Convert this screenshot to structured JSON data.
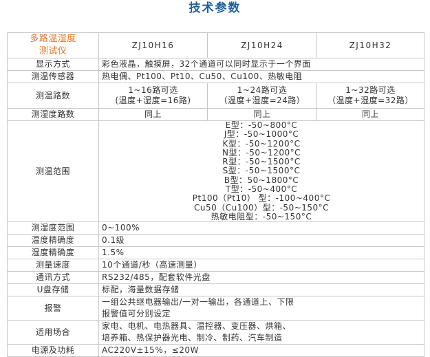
{
  "title": "技术参数",
  "header": {
    "name_line1": "多路温湿度",
    "name_line2": "测试仪",
    "models": [
      "ZJ10H16",
      "ZJ10H24",
      "ZJ10H32"
    ]
  },
  "rows": {
    "display": {
      "label": "显示方式",
      "value": "彩色液晶，触摸屏，32个通道可以同时显示于一个界面"
    },
    "sensor": {
      "label": "测温传感器",
      "value": "热电偶、Pt100、Pt10、Cu50、Cu100、热敏电阻"
    },
    "temp_channels": {
      "label": "测温路数",
      "values": [
        [
          "1~16路可选",
          "(温度+湿度=16路)"
        ],
        [
          "1~24路可选",
          "（温度+湿度=24路）"
        ],
        [
          "1~32路可选",
          "（温度+湿度=32路）"
        ]
      ]
    },
    "hum_channels": {
      "label": "测湿度路数",
      "values": [
        "同上",
        "同上",
        "同上"
      ]
    },
    "temp_range": {
      "label": "测温范围",
      "values": [
        "E型：-50~800°C",
        "J型：-50~1000°C",
        "K型：-50~1200°C",
        "N型：-50~1200°C",
        "R型：-50~1500°C",
        "S型：-50~1500°C",
        "B型：50~1800°C",
        "T型：-50~400°C",
        "Pt100（Pt10） 型：-100~400°C",
        "Cu50（Cu100）型：-50~150°C",
        "热敏电阻型：-50~150°C"
      ]
    },
    "hum_range": {
      "label": "测湿度范围",
      "value": "0~100%"
    },
    "temp_acc": {
      "label": "温度精确度",
      "value": "0.1级"
    },
    "hum_acc": {
      "label": "湿度精确度",
      "value": "1.5%"
    },
    "speed": {
      "label": "测量速度",
      "value": "10个通道/秒（高速测量）"
    },
    "comm": {
      "label": "通讯方式",
      "value": "RS232/485，配套软件光盘"
    },
    "usb": {
      "label": "U盘存储",
      "value": "标配，海量数据存储"
    },
    "alarm": {
      "label": "报警",
      "lines": [
        "一组公共继电器输出/一对一输出，各通道上、下限",
        "报警值可分别设定"
      ]
    },
    "application": {
      "label": "适用场合",
      "lines": [
        "家电、电机、电热器具、温控器、变压器、烘箱、",
        "培养箱、热保护器光电、制冷、制药、汽车制造"
      ]
    },
    "power": {
      "label": "电源及功耗",
      "value": "AC220V±15%，≤20W"
    }
  },
  "colors": {
    "title": "#1d5f9e",
    "header_name": "#e0762a",
    "border": "#c8c8c8"
  }
}
